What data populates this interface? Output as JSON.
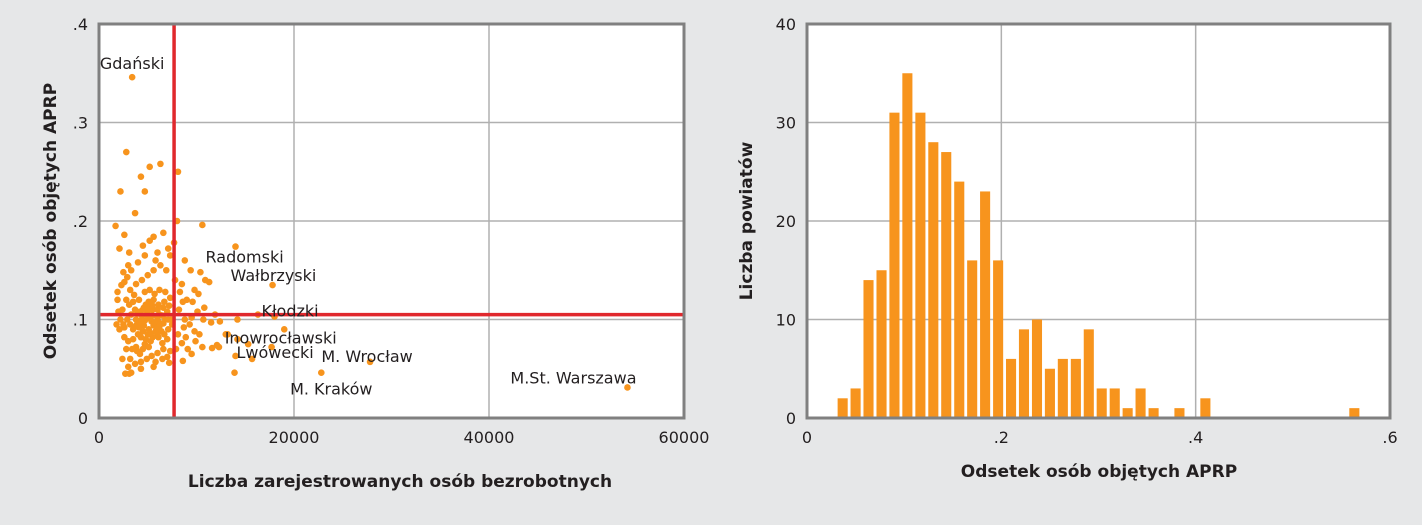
{
  "colors": {
    "background": "#e6e7e8",
    "plot_bg": "#ffffff",
    "frame": "#808080",
    "grid": "#b0b0b0",
    "marker": "#f7941d",
    "reference_line": "#e0282d",
    "text": "#231f20"
  },
  "chart_data": [
    {
      "type": "scatter",
      "title": "",
      "xlabel": "Liczba zarejestrowanych osób bezrobotnych",
      "ylabel": "Odsetek osób objętych APRP",
      "xlim": [
        0,
        60000
      ],
      "ylim": [
        0,
        0.4
      ],
      "xticks": [
        0,
        20000,
        40000,
        60000
      ],
      "xtick_labels": [
        "0",
        "20000",
        "40000",
        "60000"
      ],
      "yticks": [
        0,
        0.1,
        0.2,
        0.3,
        0.4
      ],
      "ytick_labels": [
        "0",
        ".1",
        ".2",
        ".3",
        ".4"
      ],
      "grid": true,
      "reference_lines": {
        "x": 7700,
        "y": 0.105
      },
      "labeled_points": [
        {
          "label": "Gdański",
          "x": 3400,
          "y": 0.346
        },
        {
          "label": "Radomski",
          "x": 14000,
          "y": 0.174
        },
        {
          "label": "Wałbrzyski",
          "x": 17800,
          "y": 0.135
        },
        {
          "label": "Kłodzki",
          "x": 18000,
          "y": 0.103
        },
        {
          "label": "Inowrocławski",
          "x": 13200,
          "y": 0.085
        },
        {
          "label": "Lwówecki",
          "x": 14000,
          "y": 0.063
        },
        {
          "label": "M. Wrocław",
          "x": 27800,
          "y": 0.057
        },
        {
          "label": "M. Kraków",
          "x": 22800,
          "y": 0.046
        },
        {
          "label": "M.St. Warszawa",
          "x": 54200,
          "y": 0.031
        }
      ],
      "points": [
        [
          2800,
          0.27
        ],
        [
          5200,
          0.255
        ],
        [
          6300,
          0.258
        ],
        [
          4300,
          0.245
        ],
        [
          8100,
          0.25
        ],
        [
          2200,
          0.23
        ],
        [
          4700,
          0.23
        ],
        [
          1700,
          0.195
        ],
        [
          3700,
          0.208
        ],
        [
          8000,
          0.2
        ],
        [
          10600,
          0.196
        ],
        [
          2600,
          0.186
        ],
        [
          5600,
          0.184
        ],
        [
          2100,
          0.172
        ],
        [
          3100,
          0.168
        ],
        [
          6600,
          0.188
        ],
        [
          7100,
          0.172
        ],
        [
          7700,
          0.178
        ],
        [
          8800,
          0.16
        ],
        [
          9400,
          0.15
        ],
        [
          10400,
          0.148
        ],
        [
          10900,
          0.14
        ],
        [
          11300,
          0.138
        ],
        [
          6900,
          0.15
        ],
        [
          8500,
          0.136
        ],
        [
          9800,
          0.13
        ],
        [
          10200,
          0.126
        ],
        [
          9000,
          0.12
        ],
        [
          9600,
          0.118
        ],
        [
          10800,
          0.112
        ],
        [
          11900,
          0.105
        ],
        [
          12400,
          0.098
        ],
        [
          14200,
          0.1
        ],
        [
          13000,
          0.085
        ],
        [
          12300,
          0.072
        ],
        [
          11600,
          0.071
        ],
        [
          10600,
          0.072
        ],
        [
          9500,
          0.065
        ],
        [
          8600,
          0.058
        ],
        [
          7200,
          0.056
        ],
        [
          5600,
          0.052
        ],
        [
          4300,
          0.05
        ],
        [
          3300,
          0.046
        ],
        [
          2700,
          0.045
        ],
        [
          3100,
          0.045
        ],
        [
          14200,
          0.08
        ],
        [
          15300,
          0.075
        ],
        [
          17700,
          0.072
        ],
        [
          13900,
          0.046
        ],
        [
          15700,
          0.06
        ],
        [
          19000,
          0.09
        ],
        [
          16300,
          0.105
        ],
        [
          1900,
          0.12
        ],
        [
          1900,
          0.128
        ],
        [
          2400,
          0.11
        ],
        [
          2200,
          0.1
        ],
        [
          2100,
          0.09
        ],
        [
          2600,
          0.082
        ],
        [
          2800,
          0.07
        ],
        [
          2400,
          0.06
        ],
        [
          3200,
          0.06
        ],
        [
          4200,
          0.065
        ],
        [
          3800,
          0.072
        ],
        [
          4700,
          0.075
        ],
        [
          5300,
          0.078
        ],
        [
          6100,
          0.082
        ],
        [
          6700,
          0.085
        ],
        [
          7100,
          0.09
        ],
        [
          7500,
          0.095
        ],
        [
          6800,
          0.1
        ],
        [
          6200,
          0.105
        ],
        [
          5500,
          0.11
        ],
        [
          4800,
          0.115
        ],
        [
          4100,
          0.12
        ],
        [
          3600,
          0.125
        ],
        [
          3200,
          0.13
        ],
        [
          3800,
          0.136
        ],
        [
          4400,
          0.14
        ],
        [
          5000,
          0.145
        ],
        [
          5600,
          0.15
        ],
        [
          6300,
          0.155
        ],
        [
          5800,
          0.16
        ],
        [
          4700,
          0.165
        ],
        [
          4000,
          0.158
        ],
        [
          3300,
          0.15
        ],
        [
          2900,
          0.143
        ],
        [
          2600,
          0.138
        ],
        [
          2500,
          0.148
        ],
        [
          3000,
          0.155
        ],
        [
          4500,
          0.175
        ],
        [
          5200,
          0.18
        ],
        [
          6000,
          0.168
        ],
        [
          7300,
          0.165
        ],
        [
          7800,
          0.14
        ],
        [
          8300,
          0.128
        ],
        [
          8600,
          0.118
        ],
        [
          8200,
          0.11
        ],
        [
          8800,
          0.1
        ],
        [
          9300,
          0.095
        ],
        [
          9800,
          0.088
        ],
        [
          10300,
          0.085
        ],
        [
          8900,
          0.082
        ],
        [
          8500,
          0.076
        ],
        [
          7900,
          0.07
        ],
        [
          7300,
          0.068
        ],
        [
          6600,
          0.07
        ],
        [
          6000,
          0.066
        ],
        [
          5400,
          0.063
        ],
        [
          4900,
          0.06
        ],
        [
          4300,
          0.057
        ],
        [
          3700,
          0.055
        ],
        [
          3000,
          0.052
        ],
        [
          5800,
          0.057
        ],
        [
          6500,
          0.06
        ],
        [
          7000,
          0.062
        ],
        [
          3500,
          0.09
        ],
        [
          3900,
          0.095
        ],
        [
          4400,
          0.1
        ],
        [
          4900,
          0.105
        ],
        [
          5400,
          0.098
        ],
        [
          5900,
          0.092
        ],
        [
          6400,
          0.088
        ],
        [
          6000,
          0.085
        ],
        [
          5500,
          0.082
        ],
        [
          5000,
          0.085
        ],
        [
          4500,
          0.088
        ],
        [
          4000,
          0.085
        ],
        [
          3500,
          0.08
        ],
        [
          3000,
          0.078
        ],
        [
          2600,
          0.092
        ],
        [
          2900,
          0.1
        ],
        [
          3300,
          0.105
        ],
        [
          3700,
          0.11
        ],
        [
          4200,
          0.108
        ],
        [
          4600,
          0.112
        ],
        [
          5100,
          0.118
        ],
        [
          5600,
          0.12
        ],
        [
          6100,
          0.115
        ],
        [
          6600,
          0.112
        ],
        [
          7000,
          0.108
        ],
        [
          7400,
          0.1
        ],
        [
          7000,
          0.08
        ],
        [
          6500,
          0.076
        ],
        [
          5100,
          0.072
        ],
        [
          4500,
          0.07
        ],
        [
          3900,
          0.068
        ],
        [
          3400,
          0.07
        ],
        [
          4700,
          0.128
        ],
        [
          5200,
          0.13
        ],
        [
          5700,
          0.126
        ],
        [
          6200,
          0.13
        ],
        [
          6800,
          0.128
        ],
        [
          7300,
          0.122
        ],
        [
          3100,
          0.115
        ],
        [
          2800,
          0.12
        ],
        [
          3500,
          0.118
        ],
        [
          4100,
          0.092
        ],
        [
          4600,
          0.094
        ],
        [
          5100,
          0.09
        ],
        [
          5600,
          0.094
        ],
        [
          6100,
          0.098
        ],
        [
          6600,
          0.096
        ],
        [
          7100,
          0.1
        ],
        [
          4300,
          0.082
        ],
        [
          4800,
          0.08
        ],
        [
          5300,
          0.086
        ],
        [
          5800,
          0.088
        ],
        [
          3800,
          0.1
        ],
        [
          4400,
          0.104
        ],
        [
          5000,
          0.108
        ],
        [
          5500,
          0.104
        ],
        [
          6000,
          0.102
        ],
        [
          6500,
          0.104
        ],
        [
          3200,
          0.095
        ],
        [
          3700,
          0.093
        ],
        [
          4200,
          0.097
        ],
        [
          4700,
          0.099
        ],
        [
          5200,
          0.101
        ],
        [
          5700,
          0.097
        ],
        [
          6200,
          0.093
        ],
        [
          4500,
          0.11
        ],
        [
          5000,
          0.112
        ],
        [
          5500,
          0.114
        ],
        [
          6000,
          0.11
        ],
        [
          4000,
          0.106
        ],
        [
          6700,
          0.118
        ],
        [
          7200,
          0.114
        ],
        [
          11500,
          0.097
        ],
        [
          12100,
          0.074
        ],
        [
          9900,
          0.078
        ],
        [
          9100,
          0.07
        ],
        [
          2300,
          0.135
        ],
        [
          2000,
          0.108
        ],
        [
          2500,
          0.095
        ],
        [
          1800,
          0.095
        ],
        [
          8100,
          0.085
        ],
        [
          8700,
          0.092
        ],
        [
          9500,
          0.102
        ],
        [
          10100,
          0.108
        ],
        [
          10700,
          0.1
        ]
      ]
    },
    {
      "type": "bar",
      "title": "",
      "xlabel": "Odsetek osób objętych APRP",
      "ylabel": "Liczba powiatów",
      "xlim": [
        0,
        0.6
      ],
      "ylim": [
        0,
        40
      ],
      "xticks": [
        0,
        0.2,
        0.4,
        0.6
      ],
      "xtick_labels": [
        "0",
        ".2",
        ".4",
        ".6"
      ],
      "yticks": [
        0,
        10,
        20,
        30,
        40
      ],
      "ytick_labels": [
        "0",
        "10",
        "20",
        "30",
        "40"
      ],
      "grid": true,
      "bin_width": 0.0133,
      "bins": [
        {
          "x": 0.0367,
          "count": 2
        },
        {
          "x": 0.05,
          "count": 3
        },
        {
          "x": 0.0633,
          "count": 14
        },
        {
          "x": 0.0767,
          "count": 15
        },
        {
          "x": 0.09,
          "count": 31
        },
        {
          "x": 0.1033,
          "count": 35
        },
        {
          "x": 0.1167,
          "count": 31
        },
        {
          "x": 0.13,
          "count": 28
        },
        {
          "x": 0.1433,
          "count": 27
        },
        {
          "x": 0.1567,
          "count": 24
        },
        {
          "x": 0.17,
          "count": 16
        },
        {
          "x": 0.1833,
          "count": 23
        },
        {
          "x": 0.1967,
          "count": 16
        },
        {
          "x": 0.21,
          "count": 6
        },
        {
          "x": 0.2233,
          "count": 9
        },
        {
          "x": 0.2367,
          "count": 10
        },
        {
          "x": 0.25,
          "count": 5
        },
        {
          "x": 0.2633,
          "count": 6
        },
        {
          "x": 0.2767,
          "count": 6
        },
        {
          "x": 0.29,
          "count": 9
        },
        {
          "x": 0.3033,
          "count": 3
        },
        {
          "x": 0.3167,
          "count": 3
        },
        {
          "x": 0.33,
          "count": 1
        },
        {
          "x": 0.3433,
          "count": 3
        },
        {
          "x": 0.3567,
          "count": 1
        },
        {
          "x": 0.3833,
          "count": 1
        },
        {
          "x": 0.41,
          "count": 2
        },
        {
          "x": 0.5633,
          "count": 1
        }
      ]
    }
  ]
}
